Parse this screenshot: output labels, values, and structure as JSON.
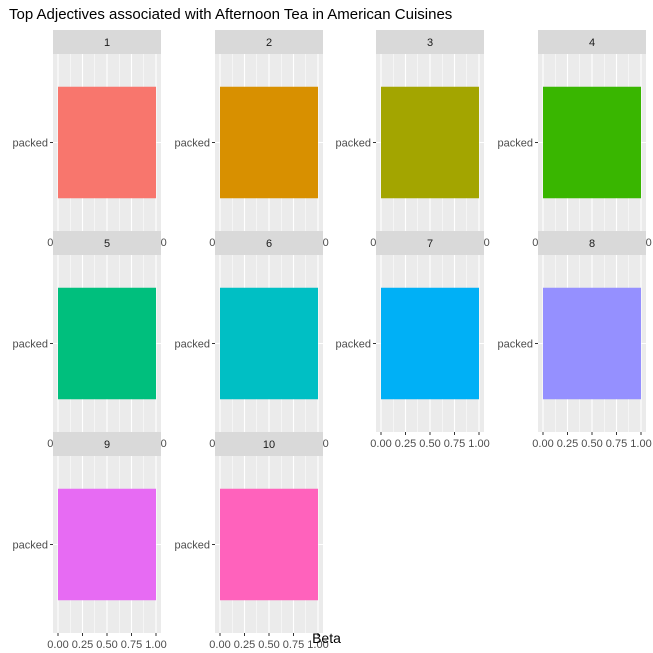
{
  "chart_data": {
    "type": "bar",
    "orientation": "horizontal",
    "layout": "facet-wrap",
    "title": "Top Adjectives associated with Afternoon Tea in American Cuisines",
    "xlabel": "Beta",
    "ylabel": "",
    "xlim": [
      0,
      1
    ],
    "x_ticks": [
      "0.00",
      "0.25",
      "0.50",
      "0.75",
      "1.00"
    ],
    "grid": true,
    "legend": "none",
    "facets": [
      {
        "label": "1",
        "color": "#F8766D",
        "categories": [
          "packed"
        ],
        "values": [
          1.0
        ]
      },
      {
        "label": "2",
        "color": "#D89000",
        "categories": [
          "packed"
        ],
        "values": [
          1.0
        ]
      },
      {
        "label": "3",
        "color": "#A3A500",
        "categories": [
          "packed"
        ],
        "values": [
          1.0
        ]
      },
      {
        "label": "4",
        "color": "#39B600",
        "categories": [
          "packed"
        ],
        "values": [
          1.0
        ]
      },
      {
        "label": "5",
        "color": "#00BF7D",
        "categories": [
          "packed"
        ],
        "values": [
          1.0
        ]
      },
      {
        "label": "6",
        "color": "#00BFC4",
        "categories": [
          "packed"
        ],
        "values": [
          1.0
        ]
      },
      {
        "label": "7",
        "color": "#00B0F6",
        "categories": [
          "packed"
        ],
        "values": [
          1.0
        ]
      },
      {
        "label": "8",
        "color": "#9590FF",
        "categories": [
          "packed"
        ],
        "values": [
          1.0
        ]
      },
      {
        "label": "9",
        "color": "#E76BF3",
        "categories": [
          "packed"
        ],
        "values": [
          1.0
        ]
      },
      {
        "label": "10",
        "color": "#FF62BC",
        "categories": [
          "packed"
        ],
        "values": [
          1.0
        ]
      }
    ]
  }
}
